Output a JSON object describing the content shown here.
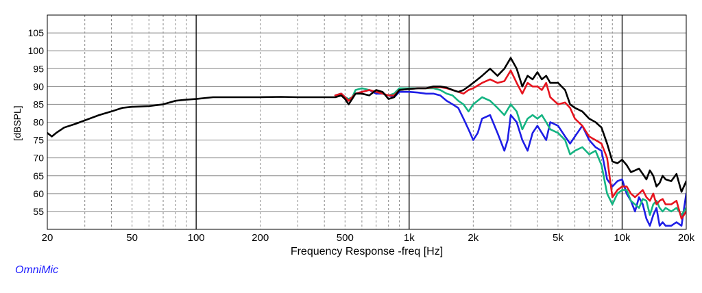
{
  "brand": "OmniMic",
  "colors": {
    "black": "#000000",
    "red": "#e6141e",
    "blue": "#1e1ee6",
    "green": "#14b482",
    "brand": "#1a1aff"
  },
  "chart_data": {
    "type": "line",
    "title": "",
    "xlabel": "Frequency Response -freq [Hz]",
    "ylabel": "[dBSPL]",
    "x_scale": "log",
    "xlim": [
      20,
      20000
    ],
    "ylim": [
      50,
      110
    ],
    "grid": true,
    "legend": "none",
    "xticks": [
      {
        "v": 20,
        "label": "20"
      },
      {
        "v": 50,
        "label": "50"
      },
      {
        "v": 100,
        "label": "100"
      },
      {
        "v": 200,
        "label": "200"
      },
      {
        "v": 500,
        "label": "500"
      },
      {
        "v": 1000,
        "label": "1k"
      },
      {
        "v": 2000,
        "label": "2k"
      },
      {
        "v": 5000,
        "label": "5k"
      },
      {
        "v": 10000,
        "label": "10k"
      },
      {
        "v": 20000,
        "label": "20k"
      }
    ],
    "yticks": [
      55,
      60,
      65,
      70,
      75,
      80,
      85,
      90,
      95,
      100,
      105
    ],
    "series": [
      {
        "color": "#000000",
        "points": [
          [
            20,
            77
          ],
          [
            21,
            76
          ],
          [
            22,
            77
          ],
          [
            24,
            78.5
          ],
          [
            27,
            79.5
          ],
          [
            30,
            80.5
          ],
          [
            35,
            82
          ],
          [
            40,
            83
          ],
          [
            45,
            84
          ],
          [
            50,
            84.3
          ],
          [
            60,
            84.5
          ],
          [
            70,
            85
          ],
          [
            80,
            86
          ],
          [
            90,
            86.3
          ],
          [
            100,
            86.5
          ],
          [
            120,
            87
          ],
          [
            150,
            87
          ],
          [
            200,
            87
          ],
          [
            250,
            87.1
          ],
          [
            300,
            87
          ],
          [
            350,
            87
          ],
          [
            400,
            87
          ],
          [
            450,
            87
          ],
          [
            480,
            87.5
          ],
          [
            500,
            86.5
          ],
          [
            520,
            85
          ],
          [
            540,
            86.5
          ],
          [
            560,
            88
          ],
          [
            600,
            88
          ],
          [
            650,
            87.5
          ],
          [
            700,
            89
          ],
          [
            750,
            88.5
          ],
          [
            800,
            86.5
          ],
          [
            850,
            87
          ],
          [
            900,
            89
          ],
          [
            1000,
            89.3
          ],
          [
            1100,
            89.5
          ],
          [
            1200,
            89.5
          ],
          [
            1300,
            90
          ],
          [
            1400,
            90
          ],
          [
            1500,
            89.7
          ],
          [
            1600,
            89
          ],
          [
            1700,
            88.5
          ],
          [
            1800,
            89
          ],
          [
            1900,
            90
          ],
          [
            2000,
            91
          ],
          [
            2200,
            93
          ],
          [
            2400,
            95
          ],
          [
            2600,
            93
          ],
          [
            2800,
            95
          ],
          [
            3000,
            98
          ],
          [
            3200,
            95
          ],
          [
            3400,
            90
          ],
          [
            3600,
            93
          ],
          [
            3800,
            92
          ],
          [
            4000,
            94
          ],
          [
            4200,
            92
          ],
          [
            4400,
            93
          ],
          [
            4600,
            91
          ],
          [
            5000,
            91
          ],
          [
            5400,
            89
          ],
          [
            5700,
            85
          ],
          [
            6000,
            84
          ],
          [
            6500,
            83
          ],
          [
            7000,
            81
          ],
          [
            7500,
            80
          ],
          [
            8000,
            78.5
          ],
          [
            8500,
            74
          ],
          [
            9000,
            69
          ],
          [
            9500,
            68.5
          ],
          [
            10000,
            69.5
          ],
          [
            10500,
            68
          ],
          [
            11000,
            66
          ],
          [
            11500,
            66.5
          ],
          [
            12000,
            67
          ],
          [
            12500,
            65.5
          ],
          [
            13000,
            64
          ],
          [
            13500,
            66.5
          ],
          [
            14000,
            65
          ],
          [
            14500,
            62
          ],
          [
            15000,
            63
          ],
          [
            15500,
            65
          ],
          [
            16000,
            64
          ],
          [
            17000,
            63.5
          ],
          [
            18000,
            65.5
          ],
          [
            19000,
            60.5
          ],
          [
            20000,
            63.5
          ]
        ]
      },
      {
        "color": "#e6141e",
        "points": [
          [
            450,
            87.5
          ],
          [
            480,
            88
          ],
          [
            500,
            87
          ],
          [
            520,
            86
          ],
          [
            540,
            87
          ],
          [
            560,
            88
          ],
          [
            600,
            88.5
          ],
          [
            650,
            89
          ],
          [
            700,
            88.5
          ],
          [
            750,
            88
          ],
          [
            800,
            87.5
          ],
          [
            850,
            87.5
          ],
          [
            900,
            89
          ],
          [
            1000,
            89.3
          ],
          [
            1100,
            89.5
          ],
          [
            1200,
            89.5
          ],
          [
            1300,
            89.8
          ],
          [
            1400,
            89.8
          ],
          [
            1500,
            89.5
          ],
          [
            1600,
            89
          ],
          [
            1700,
            88.5
          ],
          [
            1800,
            88
          ],
          [
            1900,
            89
          ],
          [
            2000,
            89.5
          ],
          [
            2200,
            91
          ],
          [
            2400,
            92
          ],
          [
            2600,
            91
          ],
          [
            2800,
            91.5
          ],
          [
            3000,
            94.5
          ],
          [
            3200,
            91
          ],
          [
            3400,
            88
          ],
          [
            3600,
            91
          ],
          [
            3800,
            90
          ],
          [
            4000,
            90
          ],
          [
            4200,
            89
          ],
          [
            4400,
            91
          ],
          [
            4600,
            87
          ],
          [
            5000,
            85
          ],
          [
            5400,
            85.5
          ],
          [
            5700,
            84
          ],
          [
            6000,
            81
          ],
          [
            6500,
            79
          ],
          [
            7000,
            76
          ],
          [
            7500,
            75
          ],
          [
            8000,
            74
          ],
          [
            8500,
            70
          ],
          [
            9000,
            59
          ],
          [
            9500,
            61
          ],
          [
            10000,
            62
          ],
          [
            10500,
            62
          ],
          [
            11000,
            60
          ],
          [
            11500,
            59
          ],
          [
            12000,
            60
          ],
          [
            12500,
            61
          ],
          [
            13000,
            59
          ],
          [
            13500,
            58
          ],
          [
            14000,
            60
          ],
          [
            14500,
            57
          ],
          [
            15000,
            58
          ],
          [
            15500,
            58.5
          ],
          [
            16000,
            57
          ],
          [
            17000,
            57
          ],
          [
            18000,
            58
          ],
          [
            19000,
            53
          ],
          [
            20000,
            55
          ]
        ]
      },
      {
        "color": "#14b482",
        "points": [
          [
            450,
            87.5
          ],
          [
            480,
            88
          ],
          [
            500,
            87
          ],
          [
            520,
            86.5
          ],
          [
            540,
            87
          ],
          [
            560,
            89
          ],
          [
            600,
            89.5
          ],
          [
            650,
            89
          ],
          [
            700,
            88.5
          ],
          [
            750,
            88
          ],
          [
            800,
            87.5
          ],
          [
            850,
            88
          ],
          [
            900,
            89.5
          ],
          [
            1000,
            89.5
          ],
          [
            1100,
            89.5
          ],
          [
            1200,
            89.5
          ],
          [
            1300,
            89.5
          ],
          [
            1400,
            89
          ],
          [
            1500,
            88
          ],
          [
            1600,
            87.5
          ],
          [
            1700,
            86
          ],
          [
            1800,
            85
          ],
          [
            1900,
            83
          ],
          [
            2000,
            85
          ],
          [
            2200,
            87
          ],
          [
            2400,
            86
          ],
          [
            2600,
            84
          ],
          [
            2800,
            82
          ],
          [
            3000,
            85
          ],
          [
            3200,
            83
          ],
          [
            3400,
            78
          ],
          [
            3600,
            81
          ],
          [
            3800,
            82
          ],
          [
            4000,
            81
          ],
          [
            4200,
            82
          ],
          [
            4400,
            80
          ],
          [
            4600,
            78
          ],
          [
            5000,
            77
          ],
          [
            5400,
            75
          ],
          [
            5700,
            71
          ],
          [
            6000,
            72
          ],
          [
            6500,
            73
          ],
          [
            7000,
            71
          ],
          [
            7500,
            72
          ],
          [
            8000,
            68
          ],
          [
            8500,
            60
          ],
          [
            9000,
            57
          ],
          [
            9500,
            60
          ],
          [
            10000,
            61
          ],
          [
            10500,
            61
          ],
          [
            11000,
            58
          ],
          [
            11500,
            57
          ],
          [
            12000,
            56
          ],
          [
            12500,
            58.5
          ],
          [
            13000,
            58
          ],
          [
            13500,
            54
          ],
          [
            14000,
            57
          ],
          [
            14500,
            58
          ],
          [
            15000,
            56
          ],
          [
            15500,
            55
          ],
          [
            16000,
            56
          ],
          [
            17000,
            55
          ],
          [
            18000,
            56
          ],
          [
            19000,
            54
          ],
          [
            20000,
            56
          ]
        ]
      },
      {
        "color": "#1e1ee6",
        "points": [
          [
            450,
            87.5
          ],
          [
            480,
            88
          ],
          [
            500,
            87
          ],
          [
            520,
            86.5
          ],
          [
            540,
            87
          ],
          [
            560,
            88
          ],
          [
            600,
            88.5
          ],
          [
            650,
            89
          ],
          [
            700,
            88
          ],
          [
            750,
            88
          ],
          [
            800,
            87.5
          ],
          [
            850,
            87
          ],
          [
            900,
            88.5
          ],
          [
            1000,
            88.5
          ],
          [
            1100,
            88.3
          ],
          [
            1200,
            88
          ],
          [
            1300,
            88
          ],
          [
            1400,
            87.5
          ],
          [
            1500,
            86
          ],
          [
            1600,
            85
          ],
          [
            1700,
            84
          ],
          [
            1800,
            81
          ],
          [
            1900,
            78
          ],
          [
            2000,
            75
          ],
          [
            2100,
            77
          ],
          [
            2200,
            81
          ],
          [
            2400,
            82
          ],
          [
            2600,
            77
          ],
          [
            2800,
            72
          ],
          [
            2900,
            75
          ],
          [
            3000,
            82
          ],
          [
            3200,
            80
          ],
          [
            3400,
            75
          ],
          [
            3600,
            72
          ],
          [
            3800,
            77
          ],
          [
            4000,
            79
          ],
          [
            4200,
            77
          ],
          [
            4400,
            75
          ],
          [
            4600,
            80
          ],
          [
            5000,
            79
          ],
          [
            5400,
            76
          ],
          [
            5700,
            74
          ],
          [
            6000,
            76
          ],
          [
            6500,
            79
          ],
          [
            7000,
            75
          ],
          [
            7500,
            73
          ],
          [
            8000,
            72
          ],
          [
            8500,
            64
          ],
          [
            9000,
            62
          ],
          [
            9500,
            63.5
          ],
          [
            10000,
            64
          ],
          [
            10500,
            60
          ],
          [
            11000,
            58
          ],
          [
            11500,
            55
          ],
          [
            12000,
            59
          ],
          [
            12500,
            57
          ],
          [
            13000,
            53
          ],
          [
            13500,
            51
          ],
          [
            14000,
            54
          ],
          [
            14500,
            56
          ],
          [
            15000,
            51
          ],
          [
            15500,
            52
          ],
          [
            16000,
            51
          ],
          [
            17000,
            51
          ],
          [
            18000,
            52
          ],
          [
            19000,
            51
          ],
          [
            20000,
            60
          ]
        ]
      }
    ]
  }
}
